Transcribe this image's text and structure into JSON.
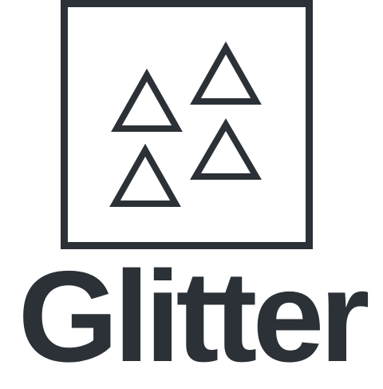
{
  "brand": {
    "name": "Glitter",
    "icon": "triangles-in-square-icon",
    "color": "#2b3137",
    "background": "#ffffff"
  }
}
